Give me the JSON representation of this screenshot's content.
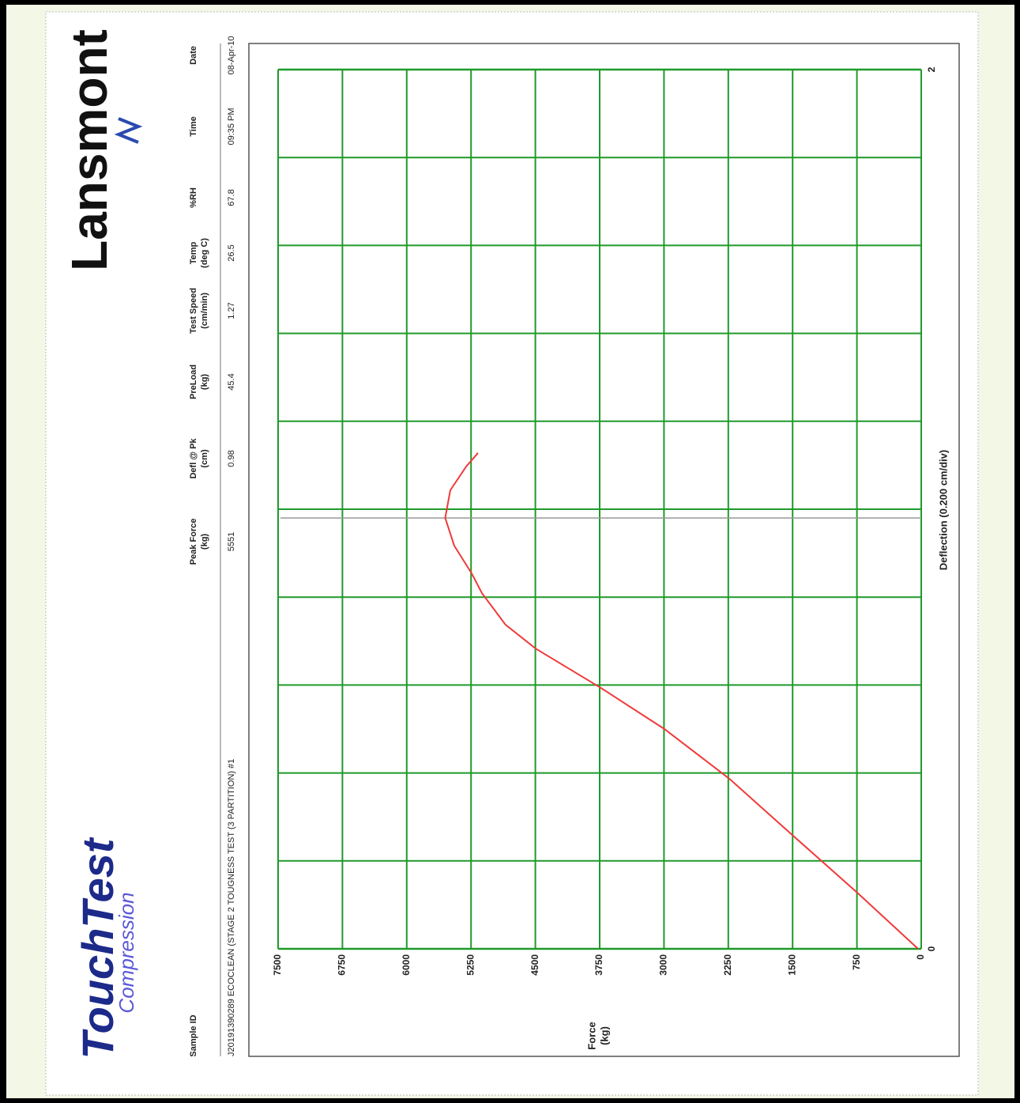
{
  "header": {
    "brand_left": "TouchTest",
    "brand_left_sub": "Compression",
    "brand_right": "Lansmont",
    "fields": [
      {
        "label": "Sample ID",
        "value": "J20191390289  ECOCLEAN (STAGE 2 TOUGNESS TEST (3 PARTITION) #1"
      },
      {
        "label": "Peak Force",
        "unit": "(kg)",
        "value": "5551"
      },
      {
        "label": "Defl @ Pk",
        "unit": "(cm)",
        "value": "0.98"
      },
      {
        "label": "PreLoad",
        "unit": "(kg)",
        "value": "45.4"
      },
      {
        "label": "Test Speed",
        "unit": "(cm/min)",
        "value": "1.27"
      },
      {
        "label": "Temp",
        "unit": "(deg C)",
        "value": "26.5"
      },
      {
        "label": "%RH",
        "value": "67.8"
      },
      {
        "label": "Time",
        "value": "09:35 PM"
      },
      {
        "label": "Date",
        "value": "08-Apr-10"
      }
    ]
  },
  "chart_data": {
    "type": "line",
    "xlabel": "Deflection (0.200 cm/div)",
    "ylabel": [
      "Force",
      "(kg)"
    ],
    "x": [
      0,
      0.126,
      0.257,
      0.387,
      0.5,
      0.594,
      0.683,
      0.737,
      0.809,
      0.854,
      0.917,
      0.98,
      1.043,
      1.097,
      1.128
    ],
    "values": [
      37,
      737,
      1493,
      2239,
      2995,
      3741,
      4496,
      4847,
      5123,
      5243,
      5446,
      5551,
      5492,
      5307,
      5169
    ],
    "color": "#f03a3a",
    "grid_color": "#1f9a2a",
    "xlim": [
      0,
      2
    ],
    "xticks": [
      0,
      2
    ],
    "minor_xticks": [
      0.2,
      0.4,
      0.6,
      0.8,
      1,
      1.2,
      1.4,
      1.6,
      1.8
    ],
    "ylim": [
      0,
      7500
    ],
    "yticks": [
      0,
      750,
      1500,
      2250,
      3000,
      3750,
      4500,
      5250,
      6000,
      6750,
      7500
    ],
    "grid": true
  }
}
